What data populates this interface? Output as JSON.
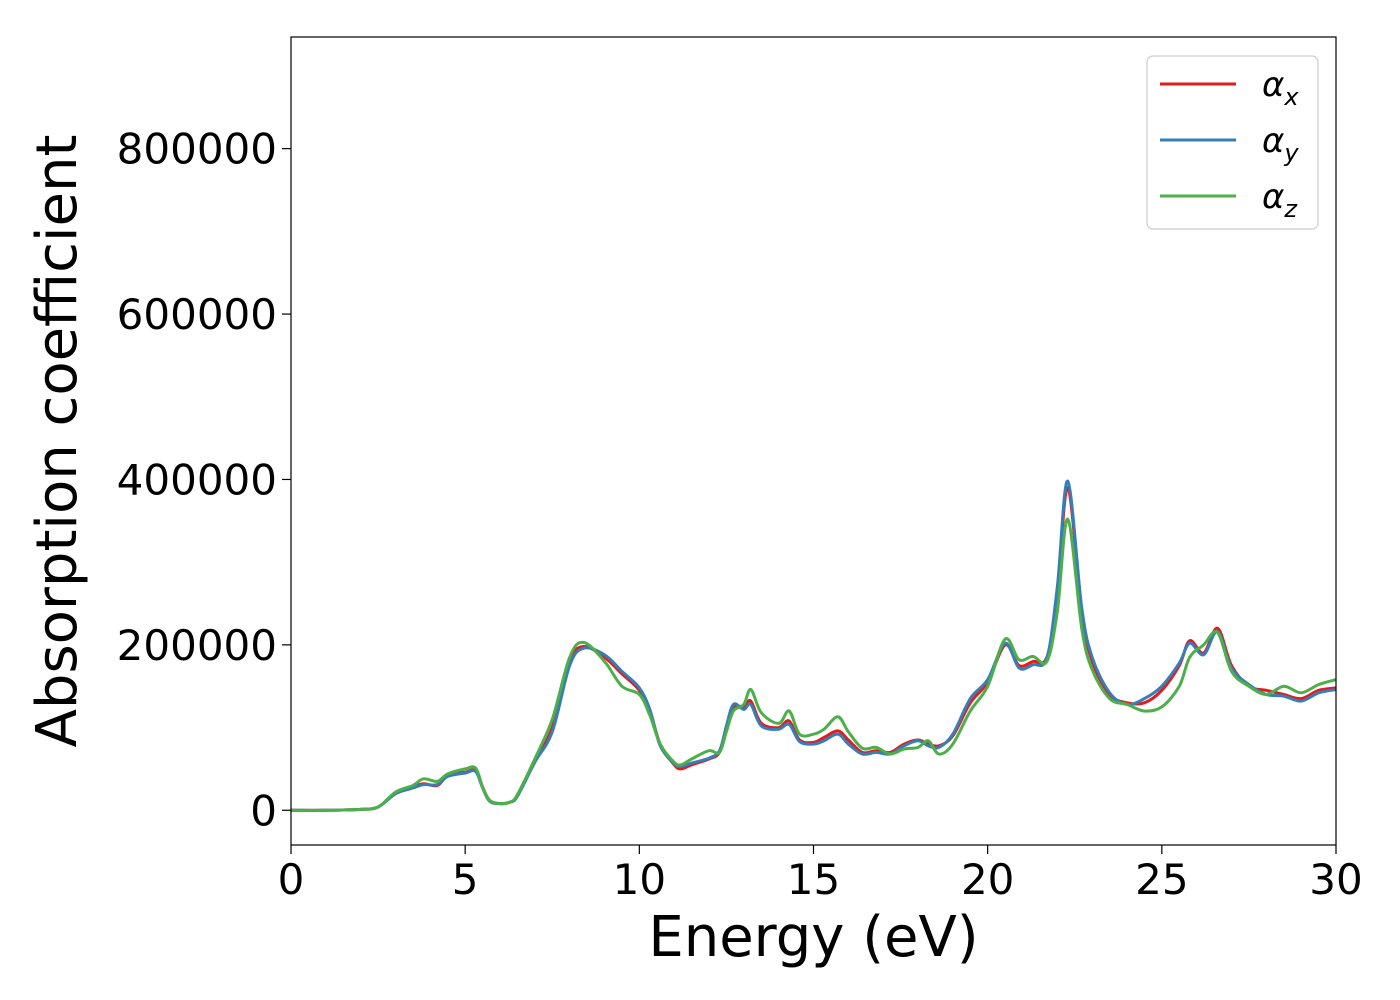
{
  "chart_data": {
    "type": "line",
    "xlabel": "Energy (eV)",
    "ylabel": "Absorption coefficient",
    "xlim": [
      0,
      30
    ],
    "ylim": [
      -42000,
      935000
    ],
    "xticks": [
      0,
      5,
      10,
      15,
      20,
      25,
      30
    ],
    "yticks": [
      0,
      200000,
      400000,
      600000,
      800000
    ],
    "grid": false,
    "legend_position": "top-right",
    "colors": {
      "alpha_x": "#e41a1c",
      "alpha_y": "#377eb8",
      "alpha_z": "#4daf4a"
    },
    "series": [
      {
        "name": "α_x",
        "name_main": "α",
        "name_sub": "x",
        "color": "#e41a1c",
        "points": [
          [
            0,
            0
          ],
          [
            1,
            0
          ],
          [
            2,
            1000
          ],
          [
            2.5,
            4000
          ],
          [
            3,
            20000
          ],
          [
            3.5,
            28000
          ],
          [
            3.8,
            32000
          ],
          [
            4.2,
            30000
          ],
          [
            4.5,
            42000
          ],
          [
            5,
            46000
          ],
          [
            5.3,
            48000
          ],
          [
            5.5,
            28000
          ],
          [
            5.7,
            12000
          ],
          [
            6,
            8000
          ],
          [
            6.3,
            10000
          ],
          [
            6.5,
            18000
          ],
          [
            7,
            60000
          ],
          [
            7.5,
            100000
          ],
          [
            8,
            180000
          ],
          [
            8.4,
            198000
          ],
          [
            9,
            185000
          ],
          [
            9.5,
            165000
          ],
          [
            10,
            145000
          ],
          [
            10.3,
            120000
          ],
          [
            10.6,
            80000
          ],
          [
            11,
            55000
          ],
          [
            11.2,
            50000
          ],
          [
            11.5,
            55000
          ],
          [
            12,
            62000
          ],
          [
            12.3,
            70000
          ],
          [
            12.5,
            100000
          ],
          [
            12.7,
            125000
          ],
          [
            13,
            125000
          ],
          [
            13.2,
            132000
          ],
          [
            13.5,
            105000
          ],
          [
            14,
            100000
          ],
          [
            14.3,
            108000
          ],
          [
            14.6,
            85000
          ],
          [
            15,
            82000
          ],
          [
            15.3,
            88000
          ],
          [
            15.7,
            96000
          ],
          [
            16,
            85000
          ],
          [
            16.4,
            70000
          ],
          [
            16.8,
            72000
          ],
          [
            17.2,
            70000
          ],
          [
            17.6,
            80000
          ],
          [
            18,
            85000
          ],
          [
            18.3,
            80000
          ],
          [
            18.6,
            78000
          ],
          [
            19,
            90000
          ],
          [
            19.5,
            130000
          ],
          [
            20,
            155000
          ],
          [
            20.5,
            200000
          ],
          [
            20.9,
            175000
          ],
          [
            21.3,
            180000
          ],
          [
            21.7,
            185000
          ],
          [
            22,
            260000
          ],
          [
            22.3,
            390000
          ],
          [
            22.7,
            240000
          ],
          [
            23,
            180000
          ],
          [
            23.5,
            140000
          ],
          [
            24,
            130000
          ],
          [
            24.5,
            130000
          ],
          [
            25,
            145000
          ],
          [
            25.5,
            175000
          ],
          [
            25.8,
            205000
          ],
          [
            26.2,
            190000
          ],
          [
            26.6,
            220000
          ],
          [
            27,
            175000
          ],
          [
            27.5,
            150000
          ],
          [
            28,
            145000
          ],
          [
            28.5,
            140000
          ],
          [
            29,
            135000
          ],
          [
            29.5,
            145000
          ],
          [
            30,
            148000
          ]
        ]
      },
      {
        "name": "α_y",
        "name_main": "α",
        "name_sub": "y",
        "color": "#377eb8",
        "points": [
          [
            0,
            0
          ],
          [
            1,
            0
          ],
          [
            2,
            1000
          ],
          [
            2.5,
            4000
          ],
          [
            3,
            20000
          ],
          [
            3.5,
            27000
          ],
          [
            3.8,
            31000
          ],
          [
            4.2,
            31000
          ],
          [
            4.5,
            41000
          ],
          [
            5,
            45000
          ],
          [
            5.3,
            47000
          ],
          [
            5.5,
            27000
          ],
          [
            5.7,
            11000
          ],
          [
            6,
            8000
          ],
          [
            6.3,
            10000
          ],
          [
            6.5,
            17000
          ],
          [
            7,
            58000
          ],
          [
            7.5,
            95000
          ],
          [
            8,
            175000
          ],
          [
            8.4,
            196000
          ],
          [
            9,
            188000
          ],
          [
            9.5,
            168000
          ],
          [
            10,
            148000
          ],
          [
            10.3,
            122000
          ],
          [
            10.6,
            78000
          ],
          [
            11,
            56000
          ],
          [
            11.2,
            53000
          ],
          [
            11.5,
            57000
          ],
          [
            12,
            63000
          ],
          [
            12.3,
            72000
          ],
          [
            12.5,
            102000
          ],
          [
            12.7,
            128000
          ],
          [
            13,
            122000
          ],
          [
            13.2,
            128000
          ],
          [
            13.5,
            102000
          ],
          [
            14,
            98000
          ],
          [
            14.3,
            104000
          ],
          [
            14.6,
            83000
          ],
          [
            15,
            80000
          ],
          [
            15.3,
            84000
          ],
          [
            15.7,
            92000
          ],
          [
            16,
            80000
          ],
          [
            16.4,
            68000
          ],
          [
            16.8,
            70000
          ],
          [
            17.2,
            68000
          ],
          [
            17.6,
            78000
          ],
          [
            18,
            84000
          ],
          [
            18.3,
            78000
          ],
          [
            18.6,
            76000
          ],
          [
            19,
            92000
          ],
          [
            19.5,
            135000
          ],
          [
            20,
            158000
          ],
          [
            20.5,
            202000
          ],
          [
            20.9,
            172000
          ],
          [
            21.3,
            176000
          ],
          [
            21.7,
            184000
          ],
          [
            22,
            270000
          ],
          [
            22.3,
            398000
          ],
          [
            22.7,
            245000
          ],
          [
            23,
            185000
          ],
          [
            23.5,
            142000
          ],
          [
            24,
            128000
          ],
          [
            24.5,
            135000
          ],
          [
            25,
            150000
          ],
          [
            25.5,
            178000
          ],
          [
            25.8,
            202000
          ],
          [
            26.2,
            188000
          ],
          [
            26.6,
            216000
          ],
          [
            27,
            172000
          ],
          [
            27.5,
            152000
          ],
          [
            28,
            140000
          ],
          [
            28.5,
            138000
          ],
          [
            29,
            132000
          ],
          [
            29.5,
            142000
          ],
          [
            30,
            146000
          ]
        ]
      },
      {
        "name": "α_z",
        "name_main": "α",
        "name_sub": "z",
        "color": "#4daf4a",
        "points": [
          [
            0,
            0
          ],
          [
            1,
            0
          ],
          [
            2,
            1000
          ],
          [
            2.5,
            4000
          ],
          [
            3,
            22000
          ],
          [
            3.5,
            30000
          ],
          [
            3.8,
            38000
          ],
          [
            4.2,
            35000
          ],
          [
            4.5,
            44000
          ],
          [
            5,
            50000
          ],
          [
            5.3,
            51000
          ],
          [
            5.5,
            28000
          ],
          [
            5.7,
            12000
          ],
          [
            6,
            8000
          ],
          [
            6.3,
            10000
          ],
          [
            6.5,
            19000
          ],
          [
            7,
            62000
          ],
          [
            7.5,
            110000
          ],
          [
            8,
            185000
          ],
          [
            8.4,
            203000
          ],
          [
            9,
            180000
          ],
          [
            9.5,
            150000
          ],
          [
            10,
            140000
          ],
          [
            10.3,
            115000
          ],
          [
            10.6,
            80000
          ],
          [
            11,
            58000
          ],
          [
            11.2,
            55000
          ],
          [
            11.5,
            62000
          ],
          [
            12,
            72000
          ],
          [
            12.3,
            70000
          ],
          [
            12.5,
            95000
          ],
          [
            12.7,
            120000
          ],
          [
            13,
            128000
          ],
          [
            13.2,
            146000
          ],
          [
            13.5,
            118000
          ],
          [
            14,
            105000
          ],
          [
            14.3,
            120000
          ],
          [
            14.6,
            92000
          ],
          [
            15,
            92000
          ],
          [
            15.3,
            98000
          ],
          [
            15.7,
            113000
          ],
          [
            16,
            95000
          ],
          [
            16.4,
            75000
          ],
          [
            16.8,
            76000
          ],
          [
            17.2,
            68000
          ],
          [
            17.6,
            74000
          ],
          [
            18,
            76000
          ],
          [
            18.3,
            84000
          ],
          [
            18.6,
            68000
          ],
          [
            19,
            80000
          ],
          [
            19.5,
            120000
          ],
          [
            20,
            150000
          ],
          [
            20.5,
            207000
          ],
          [
            20.9,
            182000
          ],
          [
            21.3,
            186000
          ],
          [
            21.7,
            180000
          ],
          [
            22,
            240000
          ],
          [
            22.3,
            352000
          ],
          [
            22.7,
            220000
          ],
          [
            23,
            170000
          ],
          [
            23.5,
            135000
          ],
          [
            24,
            128000
          ],
          [
            24.5,
            120000
          ],
          [
            25,
            125000
          ],
          [
            25.5,
            150000
          ],
          [
            25.8,
            185000
          ],
          [
            26.2,
            200000
          ],
          [
            26.6,
            215000
          ],
          [
            27,
            168000
          ],
          [
            27.5,
            150000
          ],
          [
            28,
            140000
          ],
          [
            28.5,
            150000
          ],
          [
            29,
            142000
          ],
          [
            29.5,
            152000
          ],
          [
            30,
            158000
          ]
        ]
      }
    ]
  }
}
